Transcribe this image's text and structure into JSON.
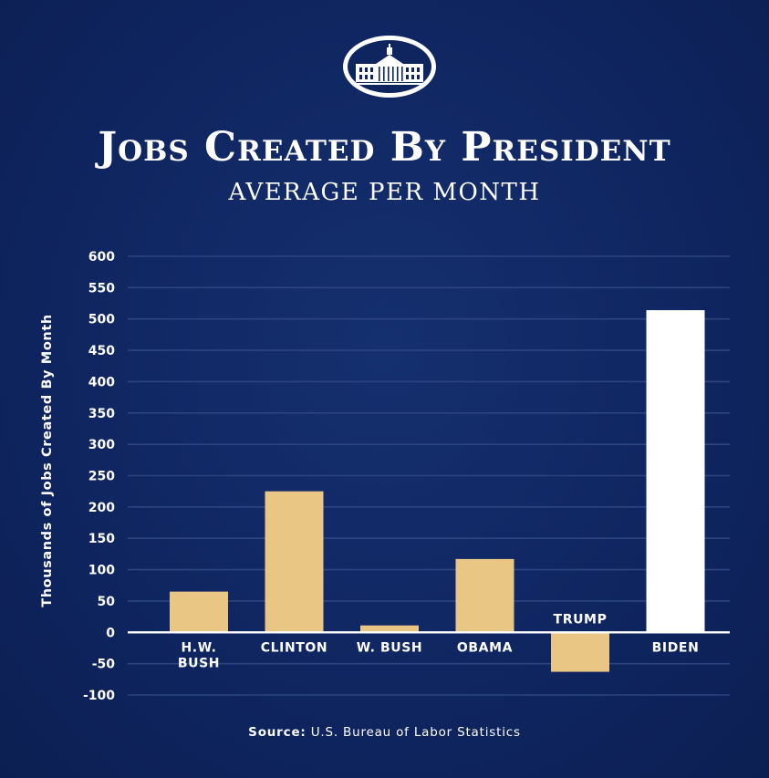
{
  "header": {
    "title": "Jobs Created By President",
    "subtitle": "AVERAGE PER MONTH"
  },
  "footer": {
    "source_label": "Source:",
    "source_text": "U.S. Bureau of Labor Statistics"
  },
  "colors": {
    "background": "#0f2560",
    "bar_gold": "#e9c684",
    "bar_highlight": "#ffffff",
    "gridline": "#2c4480",
    "axis": "#ffffff",
    "text": "#ffffff"
  },
  "chart_data": {
    "type": "bar",
    "title": "Jobs Created By President",
    "subtitle": "AVERAGE PER MONTH",
    "xlabel": "",
    "ylabel": "Thousands of Jobs Created By Month",
    "ylim": [
      -100,
      600
    ],
    "yticks": [
      600,
      550,
      500,
      450,
      400,
      350,
      300,
      250,
      200,
      150,
      100,
      50,
      0,
      -50,
      -100
    ],
    "grid": true,
    "categories": [
      "H.W. Bush",
      "Clinton",
      "W. Bush",
      "Obama",
      "Trump",
      "Biden"
    ],
    "category_label_lines": [
      [
        "H.W.",
        "BUSH"
      ],
      [
        "CLINTON"
      ],
      [
        "W. BUSH"
      ],
      [
        "OBAMA"
      ],
      [
        "TRUMP"
      ],
      [
        "BIDEN"
      ]
    ],
    "values": [
      65,
      225,
      11,
      117,
      -63,
      514
    ],
    "highlight": "Biden",
    "source": "U.S. Bureau of Labor Statistics"
  }
}
